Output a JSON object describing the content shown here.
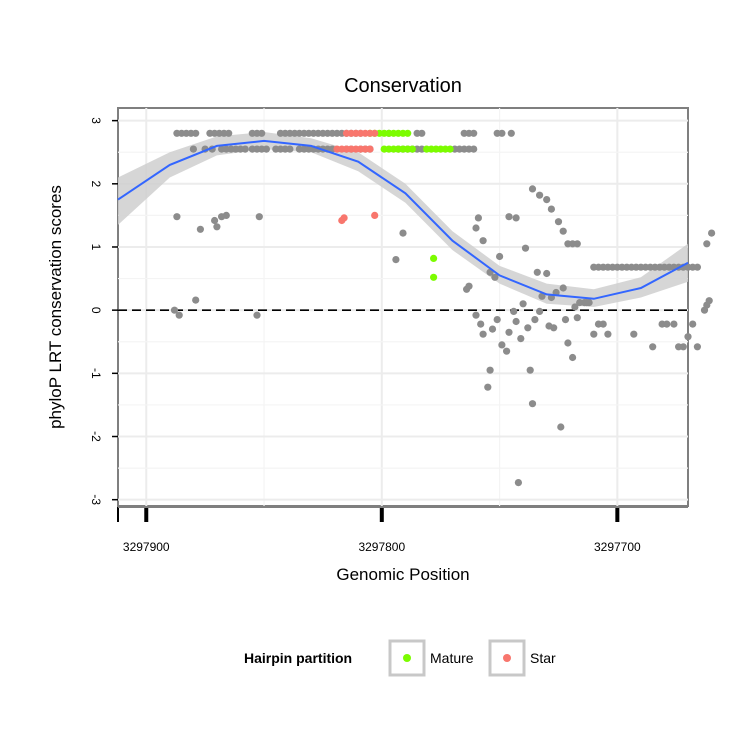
{
  "chart_data": {
    "type": "scatter",
    "title": "Conservation",
    "xlabel": "Genomic Position",
    "ylabel": "phyloP LRT conservation scores",
    "xlim": [
      3297912,
      3297670
    ],
    "x_reversed": true,
    "ylim": [
      -3.1,
      3.2
    ],
    "x_ticks": [
      3297900,
      3297800,
      3297700
    ],
    "x_tick_labels": [
      "3297900",
      "3297800",
      "3297700"
    ],
    "y_ticks": [
      -3,
      -2,
      -1,
      0,
      1,
      2,
      3
    ],
    "y_tick_labels": [
      "-3",
      "-2",
      "-1",
      "0",
      "1",
      "2",
      "3"
    ],
    "reference_line": {
      "y": 0,
      "style": "dashed"
    },
    "grid": true,
    "legend": {
      "title": "Hairpin partition",
      "placement": "bottom",
      "entries": [
        {
          "label": "Mature",
          "color": "#7cfc00"
        },
        {
          "label": "Star",
          "color": "#f8766d"
        }
      ]
    },
    "colors": {
      "other": "#8c8c8c",
      "mature": "#7cfc00",
      "star": "#f8766d",
      "smooth": "#3366ff",
      "band": "#cfcfcf"
    },
    "series": [
      {
        "name": "Other",
        "points": [
          [
            3297887,
            2.8
          ],
          [
            3297885,
            2.8
          ],
          [
            3297883,
            2.8
          ],
          [
            3297881,
            2.8
          ],
          [
            3297879,
            2.8
          ],
          [
            3297873,
            2.8
          ],
          [
            3297871,
            2.8
          ],
          [
            3297869,
            2.8
          ],
          [
            3297867,
            2.8
          ],
          [
            3297865,
            2.8
          ],
          [
            3297855,
            2.8
          ],
          [
            3297853,
            2.8
          ],
          [
            3297851,
            2.8
          ],
          [
            3297843,
            2.8
          ],
          [
            3297841,
            2.8
          ],
          [
            3297839,
            2.8
          ],
          [
            3297837,
            2.8
          ],
          [
            3297835,
            2.8
          ],
          [
            3297833,
            2.8
          ],
          [
            3297831,
            2.8
          ],
          [
            3297829,
            2.8
          ],
          [
            3297827,
            2.8
          ],
          [
            3297825,
            2.8
          ],
          [
            3297823,
            2.8
          ],
          [
            3297821,
            2.8
          ],
          [
            3297819,
            2.8
          ],
          [
            3297817,
            2.8
          ],
          [
            3297815,
            2.8
          ],
          [
            3297813,
            2.8
          ],
          [
            3297811,
            2.8
          ],
          [
            3297809,
            2.8
          ],
          [
            3297797,
            2.8
          ],
          [
            3297785,
            2.8
          ],
          [
            3297783,
            2.8
          ],
          [
            3297765,
            2.8
          ],
          [
            3297763,
            2.8
          ],
          [
            3297761,
            2.8
          ],
          [
            3297751,
            2.8
          ],
          [
            3297749,
            2.8
          ],
          [
            3297745,
            2.8
          ],
          [
            3297880,
            2.55
          ],
          [
            3297875,
            2.55
          ],
          [
            3297872,
            2.55
          ],
          [
            3297868,
            2.55
          ],
          [
            3297866,
            2.55
          ],
          [
            3297864,
            2.55
          ],
          [
            3297862,
            2.55
          ],
          [
            3297860,
            2.55
          ],
          [
            3297858,
            2.55
          ],
          [
            3297855,
            2.55
          ],
          [
            3297853,
            2.55
          ],
          [
            3297851,
            2.55
          ],
          [
            3297849,
            2.55
          ],
          [
            3297845,
            2.55
          ],
          [
            3297843,
            2.55
          ],
          [
            3297841,
            2.55
          ],
          [
            3297839,
            2.55
          ],
          [
            3297835,
            2.55
          ],
          [
            3297833,
            2.55
          ],
          [
            3297831,
            2.55
          ],
          [
            3297829,
            2.55
          ],
          [
            3297827,
            2.55
          ],
          [
            3297825,
            2.55
          ],
          [
            3297823,
            2.55
          ],
          [
            3297821,
            2.55
          ],
          [
            3297815,
            2.55
          ],
          [
            3297813,
            2.55
          ],
          [
            3297809,
            2.55
          ],
          [
            3297807,
            2.55
          ],
          [
            3297805,
            2.55
          ],
          [
            3297793,
            2.55
          ],
          [
            3297791,
            2.55
          ],
          [
            3297789,
            2.55
          ],
          [
            3297787,
            2.55
          ],
          [
            3297785,
            2.55
          ],
          [
            3297783,
            2.55
          ],
          [
            3297769,
            2.55
          ],
          [
            3297767,
            2.55
          ],
          [
            3297765,
            2.55
          ],
          [
            3297763,
            2.55
          ],
          [
            3297761,
            2.55
          ],
          [
            3297887,
            1.48
          ],
          [
            3297877,
            1.28
          ],
          [
            3297871,
            1.42
          ],
          [
            3297870,
            1.32
          ],
          [
            3297868,
            1.48
          ],
          [
            3297866,
            1.5
          ],
          [
            3297852,
            1.48
          ],
          [
            3297794,
            0.8
          ],
          [
            3297791,
            1.22
          ],
          [
            3297888,
            0.0
          ],
          [
            3297886,
            -0.08
          ],
          [
            3297879,
            0.16
          ],
          [
            3297853,
            -0.08
          ],
          [
            3297760,
            1.3
          ],
          [
            3297759,
            1.46
          ],
          [
            3297757,
            1.1
          ],
          [
            3297754,
            0.6
          ],
          [
            3297752,
            0.52
          ],
          [
            3297750,
            0.85
          ],
          [
            3297746,
            1.48
          ],
          [
            3297743,
            1.46
          ],
          [
            3297739,
            0.98
          ],
          [
            3297736,
            1.92
          ],
          [
            3297733,
            1.82
          ],
          [
            3297730,
            1.75
          ],
          [
            3297728,
            1.6
          ],
          [
            3297725,
            1.4
          ],
          [
            3297723,
            1.25
          ],
          [
            3297721,
            1.05
          ],
          [
            3297719,
            1.05
          ],
          [
            3297717,
            1.05
          ],
          [
            3297764,
            0.33
          ],
          [
            3297763,
            0.38
          ],
          [
            3297760,
            -0.08
          ],
          [
            3297758,
            -0.22
          ],
          [
            3297757,
            -0.38
          ],
          [
            3297755,
            -1.22
          ],
          [
            3297754,
            -0.95
          ],
          [
            3297753,
            -0.3
          ],
          [
            3297751,
            -0.15
          ],
          [
            3297749,
            -0.55
          ],
          [
            3297747,
            -0.65
          ],
          [
            3297746,
            -0.35
          ],
          [
            3297744,
            -0.02
          ],
          [
            3297743,
            -0.18
          ],
          [
            3297742,
            -2.73
          ],
          [
            3297741,
            -0.45
          ],
          [
            3297740,
            0.1
          ],
          [
            3297738,
            -0.28
          ],
          [
            3297737,
            -0.95
          ],
          [
            3297736,
            -1.48
          ],
          [
            3297735,
            -0.15
          ],
          [
            3297734,
            0.6
          ],
          [
            3297733,
            -0.02
          ],
          [
            3297732,
            0.22
          ],
          [
            3297730,
            0.58
          ],
          [
            3297729,
            -0.25
          ],
          [
            3297728,
            0.2
          ],
          [
            3297727,
            -0.28
          ],
          [
            3297726,
            0.28
          ],
          [
            3297724,
            -1.85
          ],
          [
            3297723,
            0.35
          ],
          [
            3297722,
            -0.15
          ],
          [
            3297721,
            -0.52
          ],
          [
            3297719,
            -0.75
          ],
          [
            3297718,
            0.05
          ],
          [
            3297717,
            -0.12
          ],
          [
            3297716,
            0.12
          ],
          [
            3297714,
            0.12
          ],
          [
            3297713,
            0.12
          ],
          [
            3297712,
            0.12
          ],
          [
            3297710,
            -0.38
          ],
          [
            3297708,
            -0.22
          ],
          [
            3297706,
            -0.22
          ],
          [
            3297704,
            -0.38
          ],
          [
            3297693,
            -0.38
          ],
          [
            3297685,
            -0.58
          ],
          [
            3297681,
            -0.22
          ],
          [
            3297679,
            -0.22
          ],
          [
            3297676,
            -0.22
          ],
          [
            3297674,
            -0.58
          ],
          [
            3297672,
            -0.58
          ],
          [
            3297670,
            -0.42
          ],
          [
            3297668,
            -0.22
          ],
          [
            3297666,
            -0.58
          ],
          [
            3297663,
            0.0
          ],
          [
            3297662,
            0.08
          ],
          [
            3297661,
            0.15
          ],
          [
            3297710,
            0.68
          ],
          [
            3297708,
            0.68
          ],
          [
            3297706,
            0.68
          ],
          [
            3297704,
            0.68
          ],
          [
            3297702,
            0.68
          ],
          [
            3297700,
            0.68
          ],
          [
            3297698,
            0.68
          ],
          [
            3297696,
            0.68
          ],
          [
            3297694,
            0.68
          ],
          [
            3297692,
            0.68
          ],
          [
            3297690,
            0.68
          ],
          [
            3297688,
            0.68
          ],
          [
            3297686,
            0.68
          ],
          [
            3297684,
            0.68
          ],
          [
            3297682,
            0.68
          ],
          [
            3297680,
            0.68
          ],
          [
            3297678,
            0.68
          ],
          [
            3297676,
            0.68
          ],
          [
            3297674,
            0.68
          ],
          [
            3297672,
            0.68
          ],
          [
            3297670,
            0.68
          ],
          [
            3297668,
            0.68
          ],
          [
            3297666,
            0.68
          ],
          [
            3297662,
            1.05
          ],
          [
            3297660,
            1.22
          ]
        ]
      },
      {
        "name": "Mature",
        "points": [
          [
            3297805,
            2.8
          ],
          [
            3297803,
            2.8
          ],
          [
            3297801,
            2.8
          ],
          [
            3297799,
            2.8
          ],
          [
            3297797,
            2.8
          ],
          [
            3297795,
            2.8
          ],
          [
            3297793,
            2.8
          ],
          [
            3297791,
            2.8
          ],
          [
            3297789,
            2.8
          ],
          [
            3297799,
            2.55
          ],
          [
            3297797,
            2.55
          ],
          [
            3297795,
            2.55
          ],
          [
            3297793,
            2.55
          ],
          [
            3297791,
            2.55
          ],
          [
            3297789,
            2.55
          ],
          [
            3297787,
            2.55
          ],
          [
            3297781,
            2.55
          ],
          [
            3297779,
            2.55
          ],
          [
            3297777,
            2.55
          ],
          [
            3297775,
            2.55
          ],
          [
            3297773,
            2.55
          ],
          [
            3297771,
            2.55
          ],
          [
            3297778,
            0.82
          ],
          [
            3297778,
            0.52
          ]
        ]
      },
      {
        "name": "Star",
        "points": [
          [
            3297815,
            2.8
          ],
          [
            3297813,
            2.8
          ],
          [
            3297811,
            2.8
          ],
          [
            3297809,
            2.8
          ],
          [
            3297807,
            2.8
          ],
          [
            3297805,
            2.8
          ],
          [
            3297803,
            2.8
          ],
          [
            3297819,
            2.55
          ],
          [
            3297817,
            2.55
          ],
          [
            3297815,
            2.55
          ],
          [
            3297813,
            2.55
          ],
          [
            3297811,
            2.55
          ],
          [
            3297809,
            2.55
          ],
          [
            3297807,
            2.55
          ],
          [
            3297805,
            2.55
          ],
          [
            3297817,
            1.42
          ],
          [
            3297816,
            1.46
          ],
          [
            3297803,
            1.5
          ]
        ]
      }
    ],
    "smooth": {
      "name": "Loess fit",
      "x": [
        3297912,
        3297890,
        3297870,
        3297850,
        3297830,
        3297810,
        3297790,
        3297770,
        3297750,
        3297730,
        3297710,
        3297690,
        3297670
      ],
      "y": [
        1.75,
        2.3,
        2.6,
        2.68,
        2.6,
        2.35,
        1.85,
        1.1,
        0.55,
        0.25,
        0.18,
        0.35,
        0.75
      ],
      "band_lower": [
        1.35,
        2.1,
        2.45,
        2.55,
        2.5,
        2.2,
        1.7,
        0.95,
        0.42,
        0.1,
        0.05,
        0.2,
        0.45
      ],
      "band_upper": [
        2.1,
        2.5,
        2.75,
        2.82,
        2.72,
        2.5,
        2.0,
        1.25,
        0.7,
        0.42,
        0.33,
        0.52,
        1.05
      ]
    }
  }
}
